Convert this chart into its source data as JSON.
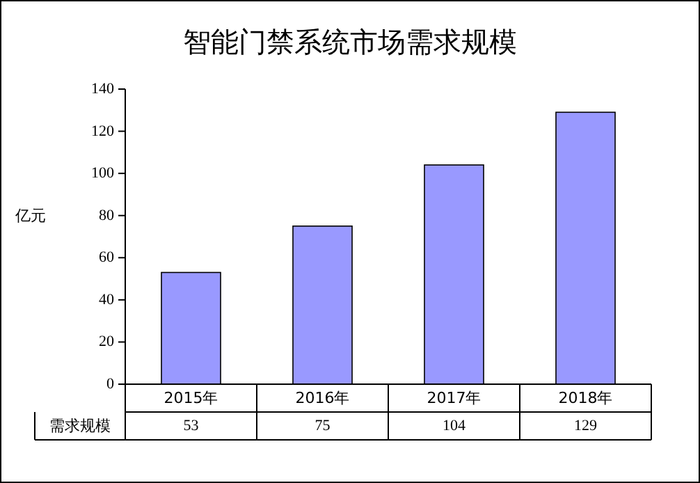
{
  "chart_data": {
    "type": "bar",
    "title": "智能门禁系统市场需求规模",
    "ylabel": "亿元",
    "categories": [
      "2015年",
      "2016年",
      "2017年",
      "2018年"
    ],
    "series": [
      {
        "name": "需求规模",
        "color": "#9999ff",
        "values": [
          53,
          75,
          104,
          129
        ]
      }
    ],
    "ylim": [
      0,
      140
    ],
    "yticks": [
      0,
      20,
      40,
      60,
      80,
      100,
      120,
      140
    ],
    "data_labels": true
  }
}
